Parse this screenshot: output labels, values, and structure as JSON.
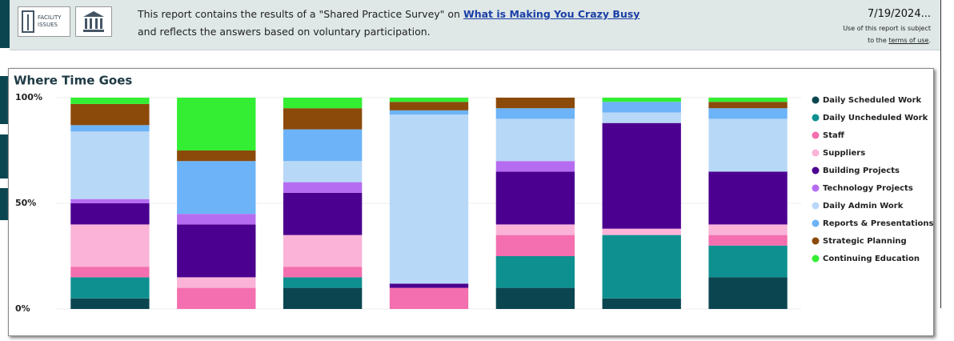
{
  "header": {
    "logo_text": "FACILITY ISSUES",
    "line1": "This report contains the results of a \"Shared Practice Survey\" on",
    "link": "What is Making You Crazy Busy",
    "line2": "and reflects the answers based on voluntary participation.",
    "date": "7/19/2024...",
    "notice1": "Use of this report is subject",
    "notice2_pre": "to the",
    "notice2_link": "terms of use",
    "notice2_post": "."
  },
  "chart_data": {
    "type": "stacked_bar",
    "title": "Where Time Goes",
    "categories": [
      null,
      null,
      null,
      null,
      null,
      null,
      null
    ],
    "ylim": [
      0,
      100
    ],
    "yticks": [
      {
        "value": 0,
        "label": "0%"
      },
      {
        "value": 50,
        "label": "50%"
      },
      {
        "value": 100,
        "label": "100%"
      }
    ],
    "grid": true,
    "legend": "right",
    "series": [
      {
        "name": "Daily Scheduled Work",
        "color": "#0b4650",
        "values": [
          5,
          0,
          10,
          0,
          10,
          5,
          15
        ]
      },
      {
        "name": "Daily Uncheduled Work",
        "color": "#0e9090",
        "values": [
          10,
          0,
          5,
          0,
          15,
          30,
          15
        ]
      },
      {
        "name": "Staff",
        "color": "#f46faf",
        "values": [
          5,
          10,
          5,
          10,
          10,
          0,
          5
        ]
      },
      {
        "name": "Suppliers",
        "color": "#fbb3d8",
        "values": [
          20,
          5,
          15,
          0,
          5,
          3,
          5
        ]
      },
      {
        "name": "Building Projects",
        "color": "#4b0090",
        "values": [
          10,
          25,
          20,
          2,
          25,
          50,
          25
        ]
      },
      {
        "name": "Technology Projects",
        "color": "#b56cf0",
        "values": [
          2,
          5,
          5,
          0,
          5,
          0,
          0
        ]
      },
      {
        "name": "Daily Admin Work",
        "color": "#b8d8f8",
        "values": [
          32,
          0,
          10,
          80,
          20,
          5,
          25
        ]
      },
      {
        "name": "Reports & Presentations",
        "color": "#6cb3f8",
        "values": [
          3,
          25,
          15,
          2,
          5,
          5,
          5
        ]
      },
      {
        "name": "Strategic Planning",
        "color": "#8b4a0a",
        "values": [
          10,
          5,
          10,
          4,
          5,
          0,
          3
        ]
      },
      {
        "name": "Continuing Education",
        "color": "#33ee33",
        "values": [
          3,
          25,
          5,
          2,
          0,
          2,
          2
        ]
      }
    ]
  }
}
